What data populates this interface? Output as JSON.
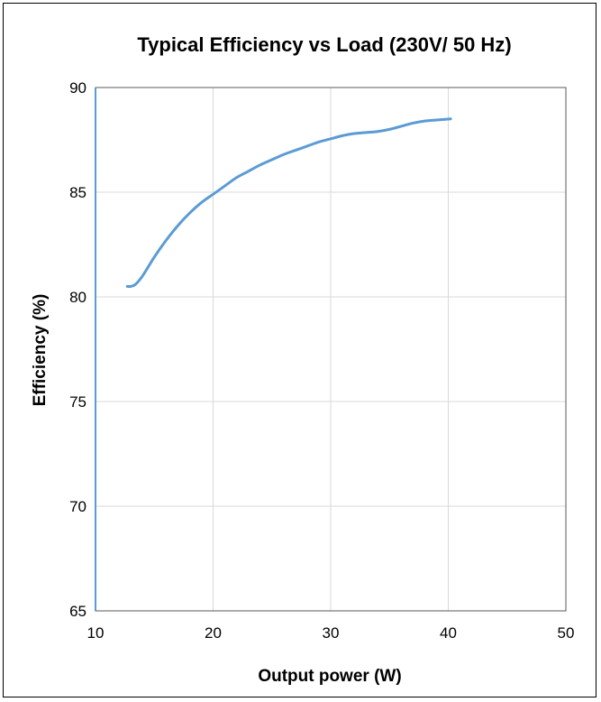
{
  "chart_data": {
    "type": "line",
    "title": "Typical Efficiency vs Load (230V/ 50 Hz)",
    "xlabel": "Output power (W)",
    "ylabel": "Efficiency (%)",
    "xlim": [
      10,
      50
    ],
    "ylim": [
      65,
      90
    ],
    "xticks": [
      10,
      20,
      30,
      40,
      50
    ],
    "yticks": [
      65,
      70,
      75,
      80,
      85,
      90
    ],
    "grid": true,
    "legend": "none",
    "line_color": "#5b9bd5",
    "series": [
      {
        "x": [
          12.7,
          13.0,
          13.4,
          14.0,
          15.0,
          16.0,
          17.0,
          18.0,
          19.0,
          20.0,
          21.0,
          22.0,
          23.0,
          24.0,
          25.0,
          26.0,
          27.0,
          28.0,
          29.0,
          30.0,
          31.0,
          32.0,
          33.0,
          34.0,
          35.0,
          36.0,
          37.0,
          38.0,
          39.0,
          40.2
        ],
        "values": [
          80.5,
          80.5,
          80.6,
          81.0,
          81.9,
          82.7,
          83.4,
          84.0,
          84.5,
          84.9,
          85.3,
          85.7,
          86.0,
          86.3,
          86.55,
          86.8,
          87.0,
          87.2,
          87.4,
          87.55,
          87.7,
          87.8,
          87.85,
          87.9,
          88.0,
          88.15,
          88.3,
          88.4,
          88.45,
          88.5
        ]
      }
    ]
  }
}
